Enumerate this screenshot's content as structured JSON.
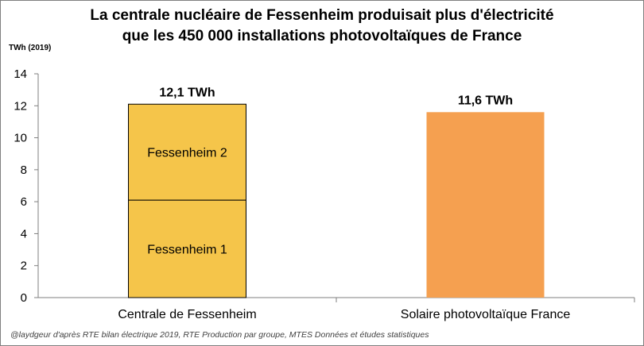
{
  "title_line1": "La centrale nucléaire de Fessenheim produisait plus d'électricité",
  "title_line2": "que les 450 000 installations photovoltaïques de France",
  "footer": "@laydgeur d'après RTE bilan électrique  2019, RTE Production par groupe, MTES Données et études statistiques",
  "colors": {
    "fessenheim": "#F5C54A",
    "solaire": "#F5A050",
    "bar_border": "#000000",
    "axis": "#7f7f7f"
  },
  "chart_data": {
    "type": "bar",
    "stacked": true,
    "ylabel": "TWh (2019)",
    "ylim": [
      0,
      14
    ],
    "yticks": [
      0,
      2,
      4,
      6,
      8,
      10,
      12,
      14
    ],
    "grid": false,
    "categories": [
      "Centrale de Fessenheim",
      "Solaire photovoltaïque France"
    ],
    "bars": [
      {
        "category": "Centrale de Fessenheim",
        "total_label": "12,1 TWh",
        "segments": [
          {
            "name": "Fessenheim 1",
            "value": 6.1
          },
          {
            "name": "Fessenheim 2",
            "value": 6.0
          }
        ]
      },
      {
        "category": "Solaire photovoltaïque France",
        "total_label": "11,6 TWh",
        "segments": [
          {
            "name": "",
            "value": 11.6
          }
        ]
      }
    ]
  }
}
